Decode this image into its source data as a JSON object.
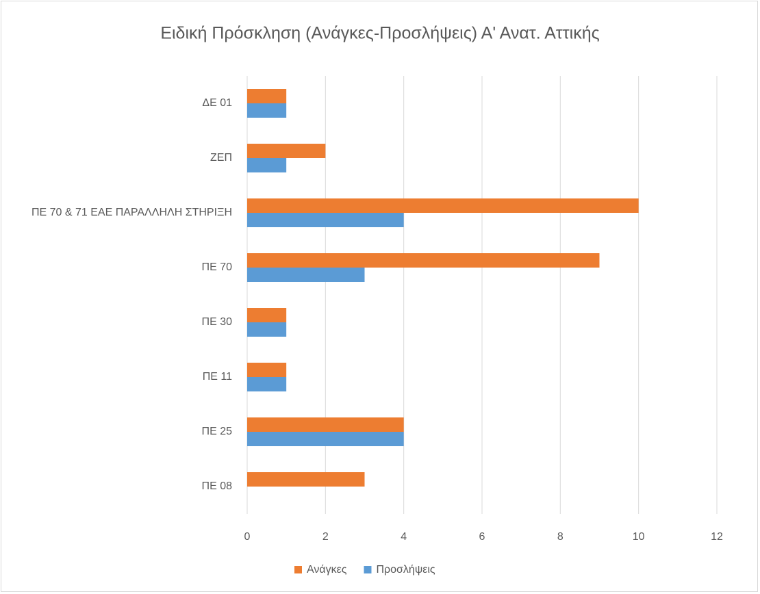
{
  "chart_data": {
    "type": "hbar",
    "title": "Ειδική Πρόσκληση (Ανάγκες-Προσλήψεις) Α' Ανατ. Αττικής",
    "categories": [
      "ΠΕ 08",
      "ΠΕ 25",
      "ΠΕ 11",
      "ΠΕ 30",
      "ΠΕ 70",
      "ΠΕ 70 & 71 ΕΑΕ ΠΑΡΑΛΛΗΛΗ ΣΤΗΡΙΞΗ",
      "ΖΕΠ",
      "ΔΕ 01"
    ],
    "series": [
      {
        "name": "Ανάγκες",
        "color": "#ed7d31",
        "values": [
          3,
          4,
          1,
          1,
          9,
          10,
          2,
          1
        ]
      },
      {
        "name": "Προσλήψεις",
        "color": "#5b9bd5",
        "values": [
          0,
          4,
          1,
          1,
          3,
          4,
          1,
          1
        ]
      }
    ],
    "xlim": [
      0,
      12
    ],
    "xticks": [
      0,
      2,
      4,
      6,
      8,
      10,
      12
    ],
    "grid": true,
    "legend": "bottom"
  }
}
